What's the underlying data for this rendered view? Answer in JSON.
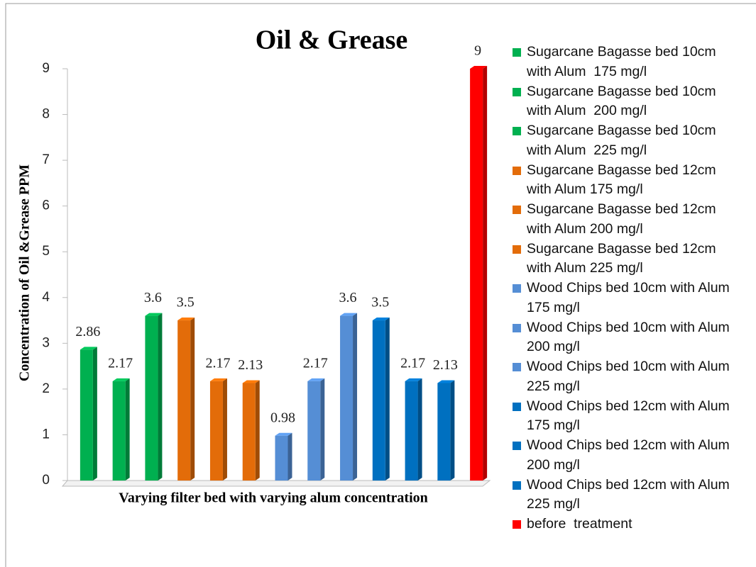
{
  "chart_data": {
    "type": "bar",
    "title": "Oil & Grease",
    "xlabel": "Varying filter bed with varying alum concentration",
    "ylabel": "Concentration of Oil &Grease PPM",
    "ylim": [
      0,
      9
    ],
    "yticks": [
      0,
      1,
      2,
      3,
      4,
      5,
      6,
      7,
      8,
      9
    ],
    "series": [
      {
        "name": "Sugarcane Bagasse bed 10cm with Alum  175 mg/l",
        "color": "#00b050",
        "values": [
          2.86
        ]
      },
      {
        "name": "Sugarcane Bagasse bed 10cm with Alum  200 mg/l",
        "color": "#00b050",
        "values": [
          2.17
        ]
      },
      {
        "name": "Sugarcane Bagasse bed 10cm with Alum  225 mg/l",
        "color": "#00b050",
        "values": [
          3.6
        ]
      },
      {
        "name": "Sugarcane Bagasse bed 12cm with Alum 175 mg/l",
        "color": "#e36c09",
        "values": [
          3.5
        ]
      },
      {
        "name": "Sugarcane Bagasse bed 12cm with Alum 200 mg/l",
        "color": "#e36c09",
        "values": [
          2.17
        ]
      },
      {
        "name": "Sugarcane Bagasse bed 12cm with Alum 225 mg/l",
        "color": "#e36c09",
        "values": [
          2.13
        ]
      },
      {
        "name": "Wood Chips bed 10cm with Alum 175 mg/l",
        "color": "#558ed5",
        "values": [
          0.98
        ]
      },
      {
        "name": "Wood Chips bed 10cm with Alum 200 mg/l",
        "color": "#558ed5",
        "values": [
          2.17
        ]
      },
      {
        "name": "Wood Chips bed 10cm with Alum 225 mg/l",
        "color": "#558ed5",
        "values": [
          3.6
        ]
      },
      {
        "name": "Wood Chips bed 12cm with Alum 175 mg/l",
        "color": "#0070c0",
        "values": [
          3.5
        ]
      },
      {
        "name": "Wood Chips bed 12cm with Alum 200 mg/l",
        "color": "#0070c0",
        "values": [
          2.17
        ]
      },
      {
        "name": "Wood Chips bed 12cm with Alum 225 mg/l",
        "color": "#0070c0",
        "values": [
          2.13
        ]
      },
      {
        "name": "before  treatment",
        "color": "#ff0000",
        "values": [
          9
        ]
      }
    ]
  }
}
